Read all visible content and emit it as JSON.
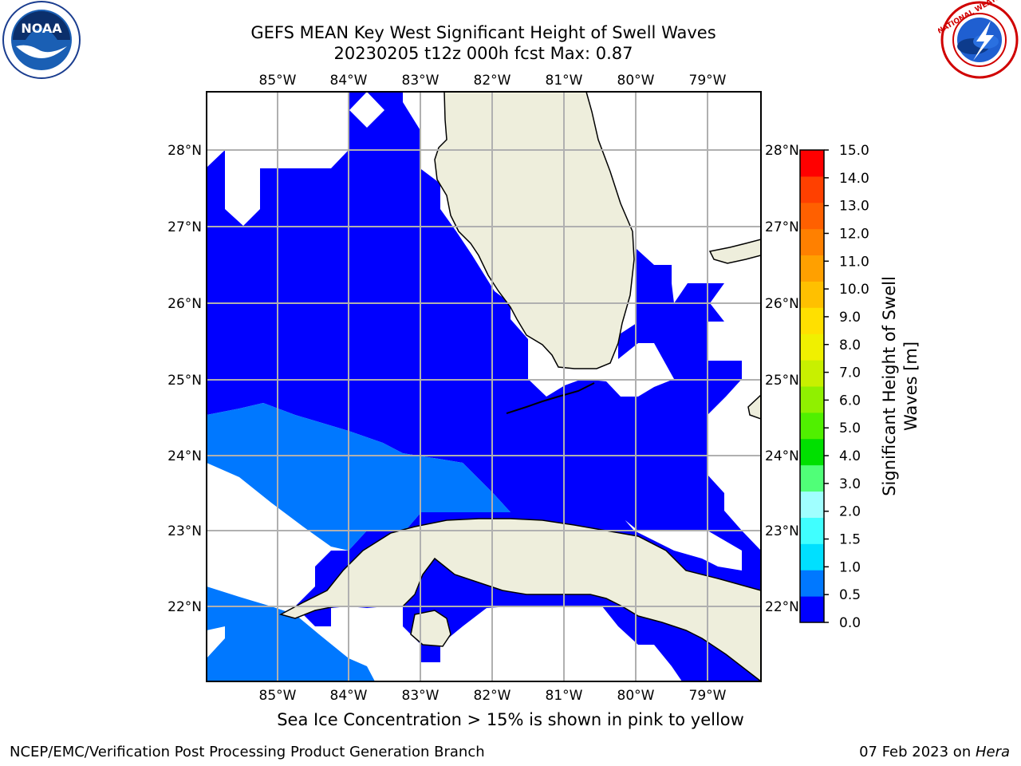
{
  "title": {
    "line1": "GEFS MEAN Key West Significant Height of Swell Waves",
    "line2": "20230205 t12z 000h fcst   Max: 0.87"
  },
  "logos": {
    "left": {
      "icon": "noaa-logo",
      "text": "NOAA"
    },
    "right": {
      "icon": "nws-logo",
      "text": "NATIONAL WEATHER SERVICE"
    }
  },
  "map": {
    "lon_labels": [
      "85°W",
      "84°W",
      "83°W",
      "82°W",
      "81°W",
      "80°W",
      "79°W"
    ],
    "lat_labels": [
      "28°N",
      "27°N",
      "26°N",
      "25°N",
      "24°N",
      "23°N",
      "22°N"
    ],
    "colors": {
      "land": "#EEEEDC",
      "swell_0_0_5": "#0000FF",
      "swell_0_5_1": "#0078FF",
      "grid": "#B0B0B0"
    }
  },
  "colorbar": {
    "label_line1": "Significant Height of Swell",
    "label_line2": "Waves [m]",
    "tick_labels": [
      "15.0",
      "14.0",
      "13.0",
      "12.0",
      "11.0",
      "10.0",
      "9.0",
      "8.0",
      "7.0",
      "6.0",
      "5.0",
      "4.0",
      "3.0",
      "2.0",
      "1.5",
      "1.0",
      "0.5",
      "0.0"
    ],
    "colors_bottom_to_top": [
      "#0000FF",
      "#0078FF",
      "#00E0FF",
      "#40FFFF",
      "#A0FFFF",
      "#50FF78",
      "#00E000",
      "#50F000",
      "#90F000",
      "#C8F000",
      "#F0F000",
      "#FFE000",
      "#FFC000",
      "#FFA000",
      "#FF8000",
      "#FF6000",
      "#FF4000",
      "#FF0000"
    ]
  },
  "note": "Sea Ice Concentration > 15% is shown in pink to yellow",
  "footer": {
    "left": "NCEP/EMC/Verification Post Processing Product Generation Branch",
    "date": "07 Feb 2023 on ",
    "host": "Hera"
  }
}
